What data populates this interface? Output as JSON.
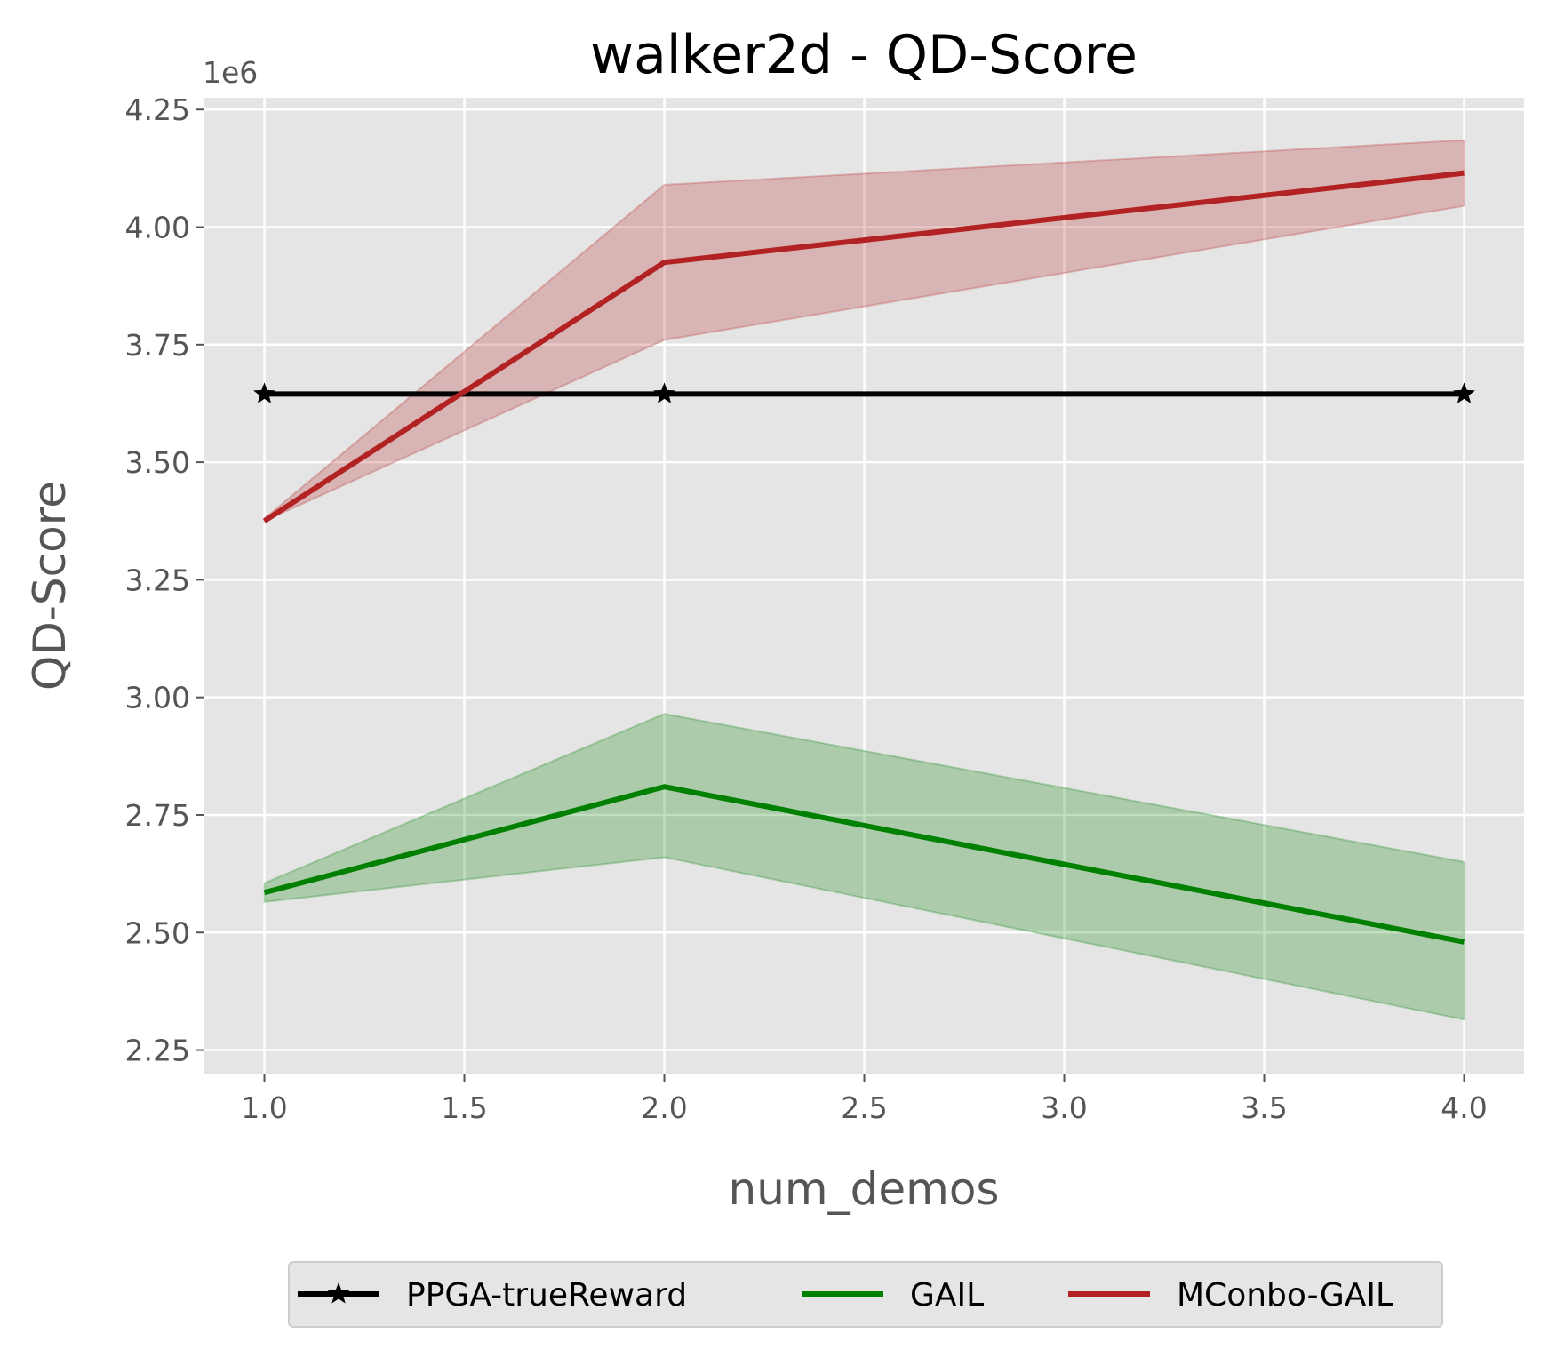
{
  "chart_data": {
    "type": "line",
    "title": "walker2d - QD-Score",
    "xlabel": "num_demos",
    "ylabel": "QD-Score",
    "y_offset_label": "1e6",
    "xlim": [
      0.85,
      4.15
    ],
    "ylim": [
      2.2,
      4.275
    ],
    "x_ticks": [
      1.0,
      1.5,
      2.0,
      2.5,
      3.0,
      3.5,
      4.0
    ],
    "x_tick_labels": [
      "1.0",
      "1.5",
      "2.0",
      "2.5",
      "3.0",
      "3.5",
      "4.0"
    ],
    "y_ticks": [
      2.25,
      2.5,
      2.75,
      3.0,
      3.25,
      3.5,
      3.75,
      4.0,
      4.25
    ],
    "y_tick_labels": [
      "2.25",
      "2.50",
      "2.75",
      "3.00",
      "3.25",
      "3.50",
      "3.75",
      "4.00",
      "4.25"
    ],
    "grid": true,
    "legend_position": "bottom-outside",
    "x": [
      1,
      2,
      4
    ],
    "series": [
      {
        "name": "PPGA-trueReward",
        "color": "#000000",
        "marker": "star",
        "values": [
          3.645,
          3.645,
          3.645
        ]
      },
      {
        "name": "GAIL",
        "color": "#008000",
        "marker": "none",
        "values": [
          2.585,
          2.81,
          2.48
        ],
        "lower": [
          2.565,
          2.66,
          2.315
        ],
        "upper": [
          2.605,
          2.965,
          2.65
        ]
      },
      {
        "name": "MConbo-GAIL",
        "color": "#b22222",
        "marker": "none",
        "values": [
          3.375,
          3.925,
          4.115
        ],
        "lower": [
          3.375,
          3.76,
          4.045
        ],
        "upper": [
          3.38,
          4.09,
          4.185
        ]
      }
    ]
  }
}
